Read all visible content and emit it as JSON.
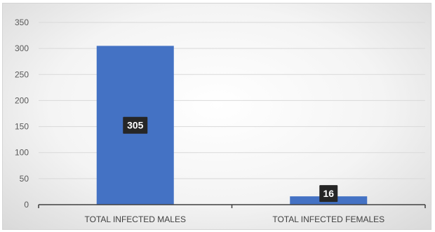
{
  "chart_data": {
    "type": "bar",
    "categories": [
      "TOTAL INFECTED MALES",
      "TOTAL INFECTED FEMALES"
    ],
    "values": [
      305,
      16
    ],
    "data_labels": [
      "305",
      "16"
    ],
    "ylim": [
      0,
      350
    ],
    "yticks": [
      0,
      50,
      100,
      150,
      200,
      250,
      300,
      350
    ],
    "ytick_labels": [
      "0",
      "50",
      "100",
      "150",
      "200",
      "250",
      "300",
      "350"
    ],
    "grid": true,
    "legend": "none",
    "bar_color": "#4472c4",
    "label_box_color": "#262626",
    "gridline_color": "#d9d9d9",
    "axis_color": "#404040"
  }
}
